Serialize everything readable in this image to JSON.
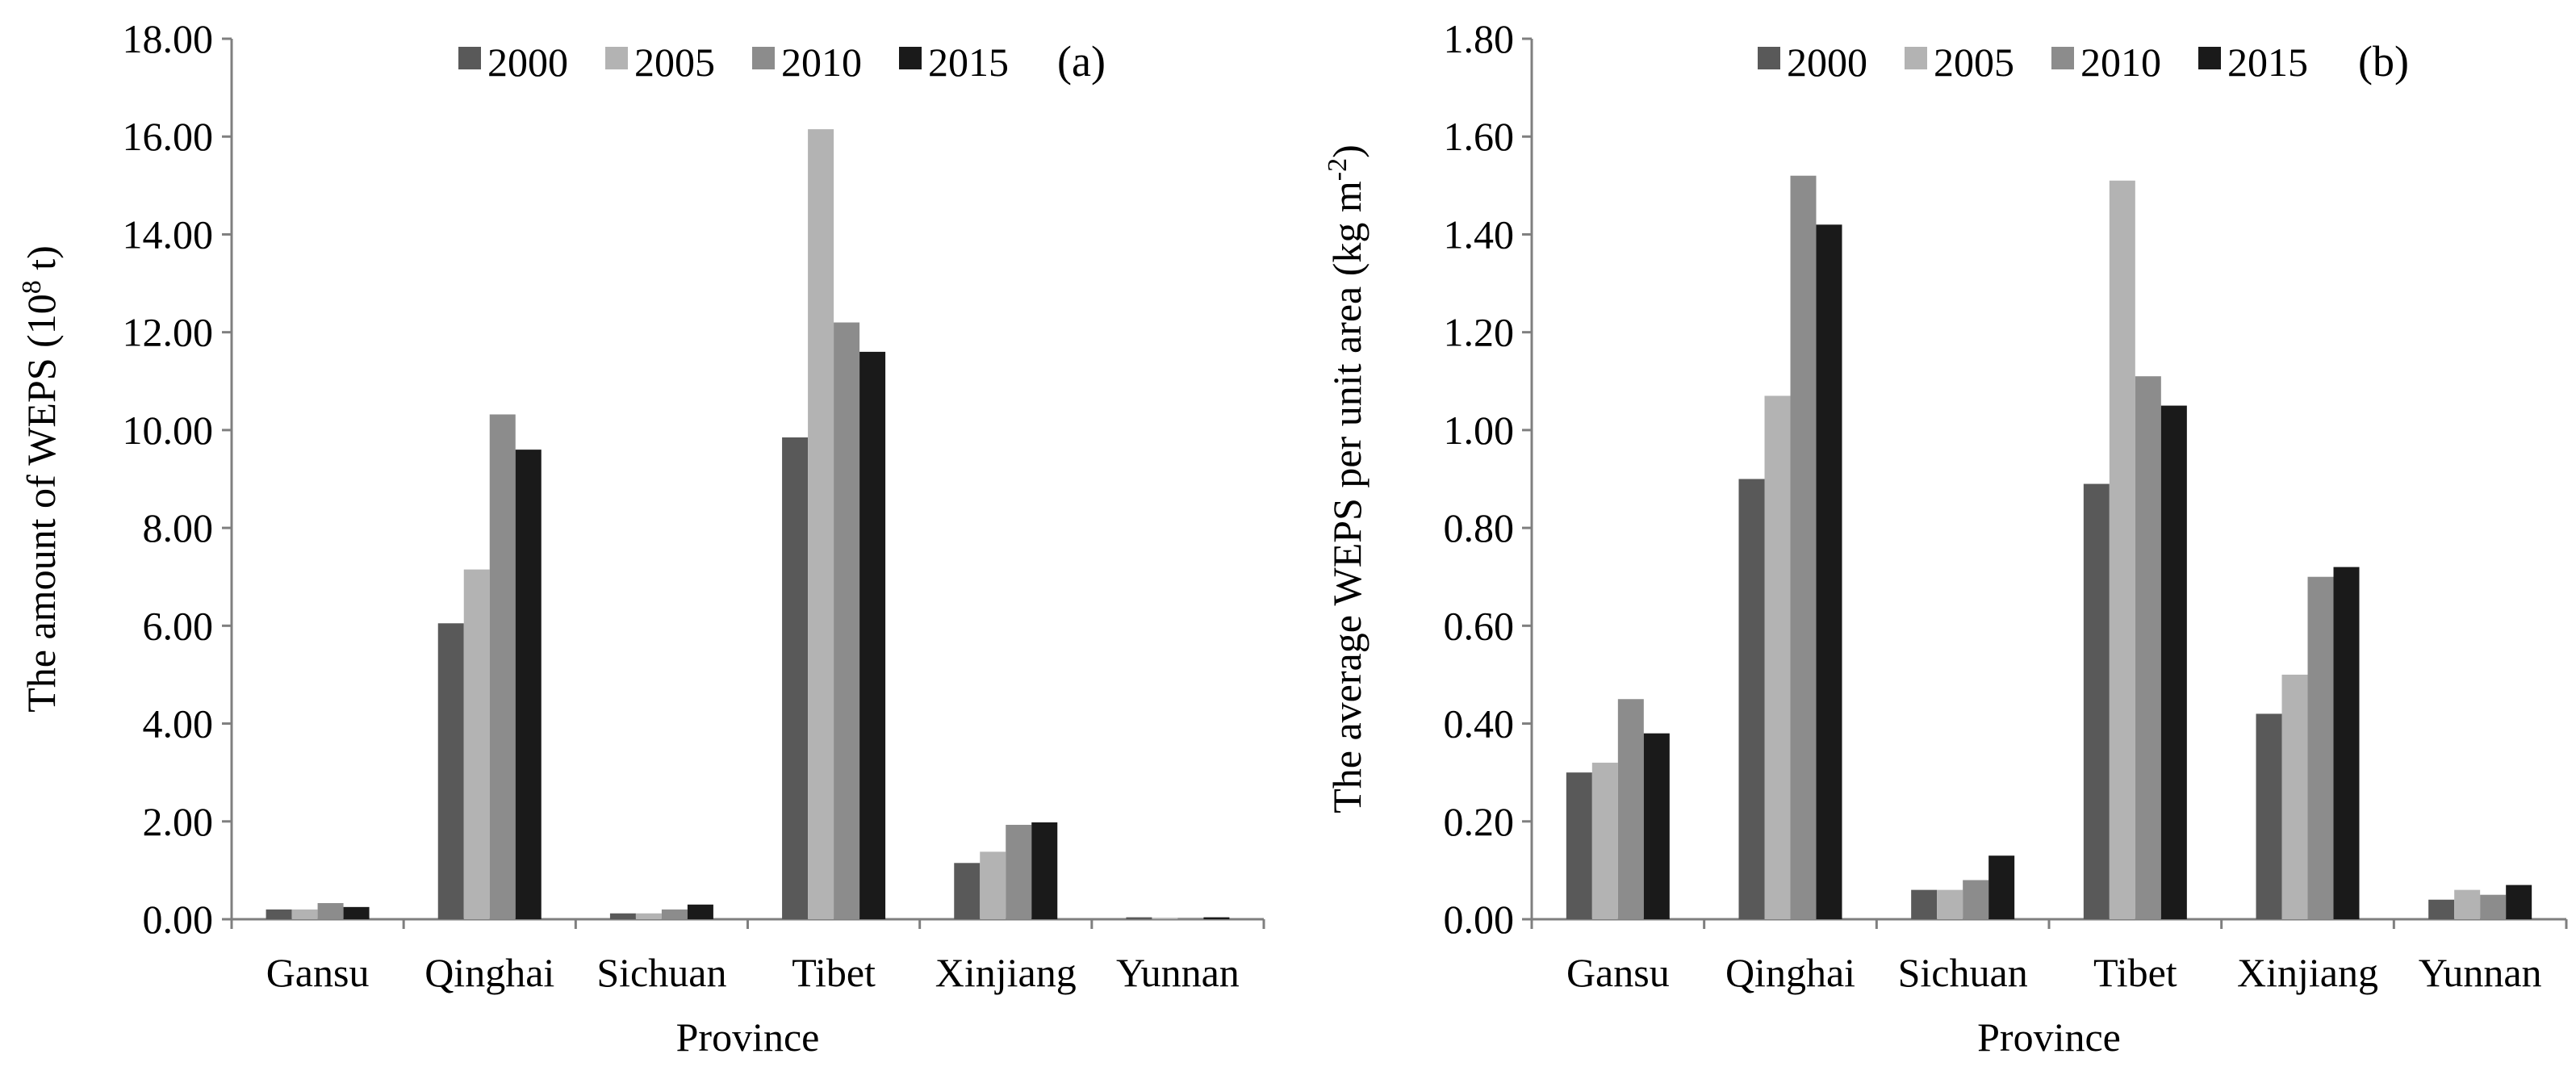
{
  "chart_data": [
    {
      "type": "bar",
      "panel_label": "(a)",
      "title": "",
      "xlabel": "Province",
      "ylabel": "The amount of  WEPS",
      "ylabel_unit_prefix": "(10",
      "ylabel_unit_exp": "8",
      "ylabel_unit_suffix": " t)",
      "categories": [
        "Gansu",
        "Qinghai",
        "Sichuan",
        "Tibet",
        "Xinjiang",
        "Yunnan"
      ],
      "ylim": [
        0,
        18
      ],
      "ytick_step": 2,
      "ytick_decimals": 2,
      "legend_position": "top",
      "series": [
        {
          "name": "2000",
          "color": "#595959",
          "values": [
            0.2,
            6.05,
            0.12,
            9.85,
            1.15,
            0.04
          ]
        },
        {
          "name": "2005",
          "color": "#b3b3b3",
          "values": [
            0.2,
            7.15,
            0.12,
            16.15,
            1.38,
            0.03
          ]
        },
        {
          "name": "2010",
          "color": "#8c8c8c",
          "values": [
            0.33,
            10.32,
            0.2,
            12.2,
            1.93,
            0.03
          ]
        },
        {
          "name": "2015",
          "color": "#1a1a1a",
          "values": [
            0.25,
            9.6,
            0.3,
            11.6,
            1.98,
            0.04
          ]
        }
      ]
    },
    {
      "type": "bar",
      "panel_label": "(b)",
      "title": "",
      "xlabel": "Province",
      "ylabel": "The average  WEPS per unit area",
      "ylabel_unit_prefix": "(kg m",
      "ylabel_unit_exp": "-2",
      "ylabel_unit_suffix": ")",
      "categories": [
        "Gansu",
        "Qinghai",
        "Sichuan",
        "Tibet",
        "Xinjiang",
        "Yunnan"
      ],
      "ylim": [
        0,
        1.8
      ],
      "ytick_step": 0.2,
      "ytick_decimals": 2,
      "legend_position": "top",
      "series": [
        {
          "name": "2000",
          "color": "#595959",
          "values": [
            0.3,
            0.9,
            0.06,
            0.89,
            0.42,
            0.04
          ]
        },
        {
          "name": "2005",
          "color": "#b3b3b3",
          "values": [
            0.32,
            1.07,
            0.06,
            1.51,
            0.5,
            0.06
          ]
        },
        {
          "name": "2010",
          "color": "#8c8c8c",
          "values": [
            0.45,
            1.52,
            0.08,
            1.11,
            0.7,
            0.05
          ]
        },
        {
          "name": "2015",
          "color": "#1a1a1a",
          "values": [
            0.38,
            1.42,
            0.13,
            1.05,
            0.72,
            0.07
          ]
        }
      ]
    }
  ]
}
